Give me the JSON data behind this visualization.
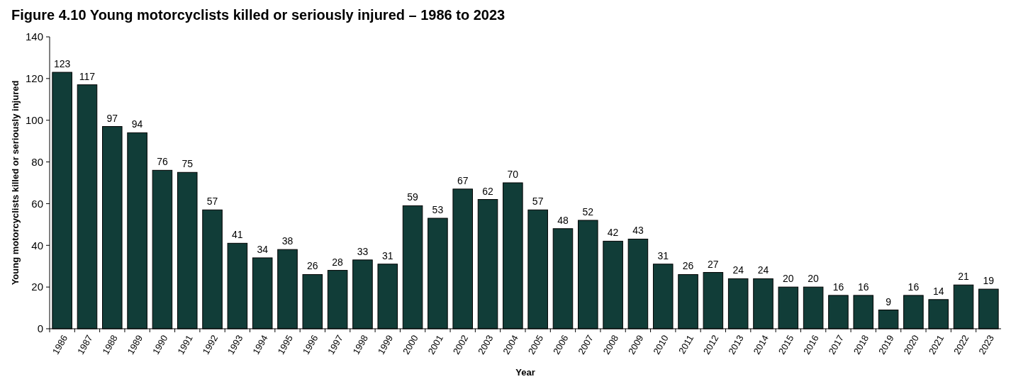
{
  "chart_data": {
    "type": "bar",
    "title": "Figure 4.10 Young motorcyclists killed or seriously injured – 1986 to 2023",
    "xlabel": "Year",
    "ylabel": "Young motorcyclists killed or seriously injured",
    "categories": [
      "1986",
      "1987",
      "1988",
      "1989",
      "1990",
      "1991",
      "1992",
      "1993",
      "1994",
      "1995",
      "1996",
      "1997",
      "1998",
      "1999",
      "2000",
      "2001",
      "2002",
      "2003",
      "2004",
      "2005",
      "2006",
      "2007",
      "2008",
      "2009",
      "2010",
      "2011",
      "2012",
      "2013",
      "2014",
      "2015",
      "2016",
      "2017",
      "2018",
      "2019",
      "2020",
      "2021",
      "2022",
      "2023"
    ],
    "values": [
      123,
      117,
      97,
      94,
      76,
      75,
      57,
      41,
      34,
      38,
      26,
      28,
      33,
      31,
      59,
      53,
      67,
      62,
      70,
      57,
      48,
      52,
      42,
      43,
      31,
      26,
      27,
      24,
      24,
      20,
      20,
      16,
      16,
      9,
      16,
      14,
      21,
      19
    ],
    "color": "#113d38",
    "ylim": [
      0,
      140
    ],
    "yticks": [
      0,
      20,
      40,
      60,
      80,
      100,
      120,
      140
    ],
    "data_labels": true
  }
}
